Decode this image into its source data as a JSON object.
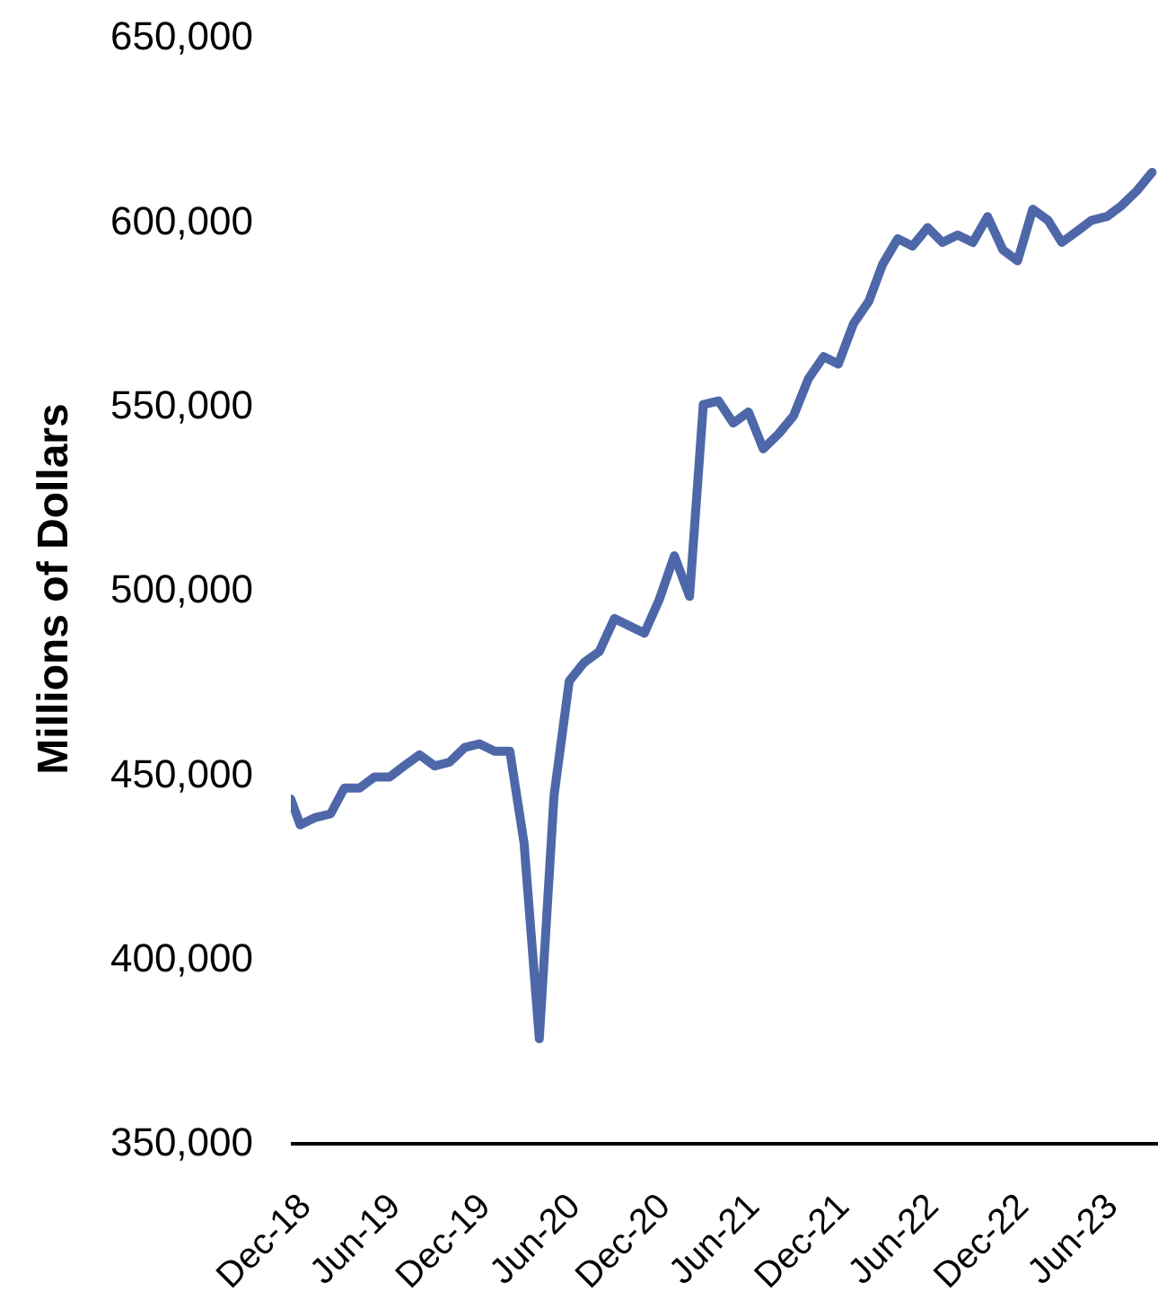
{
  "chart_data": {
    "type": "line",
    "ylabel": "Millions of Dollars",
    "x": [
      "2018-11-12",
      "2018-12",
      "2019-01",
      "2019-02",
      "2019-03",
      "2019-04",
      "2019-05",
      "2019-06",
      "2019-07",
      "2019-08",
      "2019-09",
      "2019-10",
      "2019-11",
      "2019-12",
      "2020-01",
      "2020-02",
      "2020-03",
      "2020-04",
      "2020-05",
      "2020-06",
      "2020-07",
      "2020-08",
      "2020-09",
      "2020-10",
      "2020-11",
      "2020-12",
      "2021-01",
      "2021-02",
      "2021-03",
      "2021-04",
      "2021-05",
      "2021-06",
      "2021-07",
      "2021-08",
      "2021-09",
      "2021-10",
      "2021-11",
      "2021-12",
      "2022-01",
      "2022-02",
      "2022-03",
      "2022-04",
      "2022-05",
      "2022-06",
      "2022-07",
      "2022-08",
      "2022-09",
      "2022-10",
      "2022-11",
      "2022-12",
      "2023-01",
      "2023-02",
      "2023-03",
      "2023-04",
      "2023-05",
      "2023-06",
      "2023-07",
      "2023-08",
      "2023-09"
    ],
    "series": [
      {
        "color": "#4e67a9",
        "values": [
          443000,
          436000,
          438000,
          439000,
          446000,
          446000,
          449000,
          449000,
          452000,
          455000,
          452000,
          453000,
          457000,
          458000,
          456000,
          456000,
          431000,
          378000,
          444000,
          475000,
          480000,
          483000,
          492000,
          490000,
          488000,
          497000,
          509000,
          498000,
          550000,
          551000,
          545000,
          548000,
          538000,
          542000,
          547000,
          557000,
          563000,
          561000,
          572000,
          578000,
          588000,
          595000,
          593000,
          598000,
          594000,
          596000,
          594000,
          601000,
          592000,
          589000,
          603000,
          600000,
          594000,
          597000,
          600000,
          601000,
          604000,
          608000,
          613000
        ]
      }
    ],
    "xlim": [
      "2018-11-12",
      "2023-09-13"
    ],
    "xticks": [
      {
        "value": "2018-12",
        "label": "Dec-18"
      },
      {
        "value": "2019-06",
        "label": "Jun-19"
      },
      {
        "value": "2019-12",
        "label": "Dec-19"
      },
      {
        "value": "2020-06",
        "label": "Jun-20"
      },
      {
        "value": "2020-12",
        "label": "Dec-20"
      },
      {
        "value": "2021-06",
        "label": "Jun-21"
      },
      {
        "value": "2021-12",
        "label": "Dec-21"
      },
      {
        "value": "2022-06",
        "label": "Jun-22"
      },
      {
        "value": "2022-12",
        "label": "Dec-22"
      },
      {
        "value": "2023-06",
        "label": "Jun-23"
      }
    ],
    "ylim": [
      350000,
      650000
    ],
    "yticks": [
      {
        "value": 350000,
        "label": "350,000"
      },
      {
        "value": 400000,
        "label": "400,000"
      },
      {
        "value": 450000,
        "label": "450,000"
      },
      {
        "value": 500000,
        "label": "500,000"
      },
      {
        "value": 550000,
        "label": "550,000"
      },
      {
        "value": 600000,
        "label": "600,000"
      },
      {
        "value": 650000,
        "label": "650,000"
      }
    ]
  }
}
